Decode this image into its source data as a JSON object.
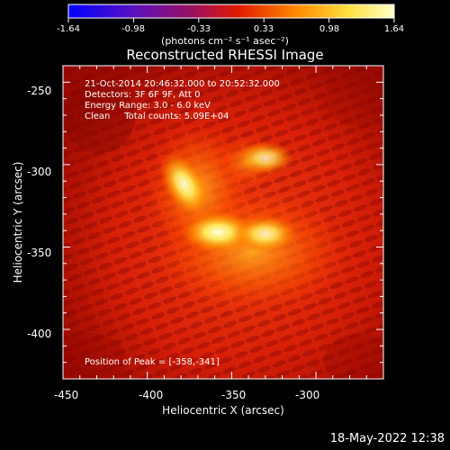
{
  "colorbar": {
    "tick_labels": [
      "-1.64",
      "-0.98",
      "-0.33",
      "0.33",
      "0.98",
      "1.64"
    ],
    "units_label": "(photons cm⁻² s⁻¹ asec⁻²)",
    "range": [
      -1.64,
      1.64
    ],
    "colors": [
      "#0000ff",
      "#7a1aa0",
      "#cc1010",
      "#ff7a00",
      "#ffff60",
      "#ffffff"
    ]
  },
  "plot": {
    "title": "Reconstructed RHESSI Image",
    "xlabel": "Heliocentric X (arcsec)",
    "ylabel": "Heliocentric Y (arcsec)",
    "x_ticks": [
      "-450",
      "-400",
      "-350",
      "-300"
    ],
    "y_ticks": [
      "-250",
      "-300",
      "-350",
      "-400"
    ],
    "xlim": [
      -450,
      -260
    ],
    "ylim": [
      -430,
      -240
    ],
    "annotations": {
      "time_range": "21-Oct-2014 20:46:32.000 to 20:52:32.000",
      "detectors": "Detectors: 3F 6F 9F, Att 0",
      "energy_range": "Energy Range: 3.0 - 6.0 keV",
      "method": "Clean     Total counts: 5.09E+04",
      "peak_position": "Position of Peak = [-358,-341]"
    }
  },
  "chart_data": {
    "type": "heatmap",
    "title": "Reconstructed RHESSI Image",
    "xlabel": "Heliocentric X (arcsec)",
    "ylabel": "Heliocentric Y (arcsec)",
    "xlim": [
      -450,
      -260
    ],
    "ylim": [
      -430,
      -240
    ],
    "x_ticks": [
      -450,
      -400,
      -350,
      -300
    ],
    "y_ticks": [
      -250,
      -300,
      -350,
      -400
    ],
    "color_range": [
      -1.64,
      1.64
    ],
    "peak": [
      -358,
      -341
    ],
    "sources": [
      {
        "x": -358,
        "y": -341,
        "value": 1.64
      },
      {
        "x": -378,
        "y": -312,
        "value": 1.45
      },
      {
        "x": -330,
        "y": -342,
        "value": 1.25
      },
      {
        "x": -330,
        "y": -296,
        "value": 1.0
      }
    ],
    "grid": false,
    "colormap": "red-temperature"
  },
  "footer": {
    "timestamp": "18-May-2022 12:38"
  }
}
